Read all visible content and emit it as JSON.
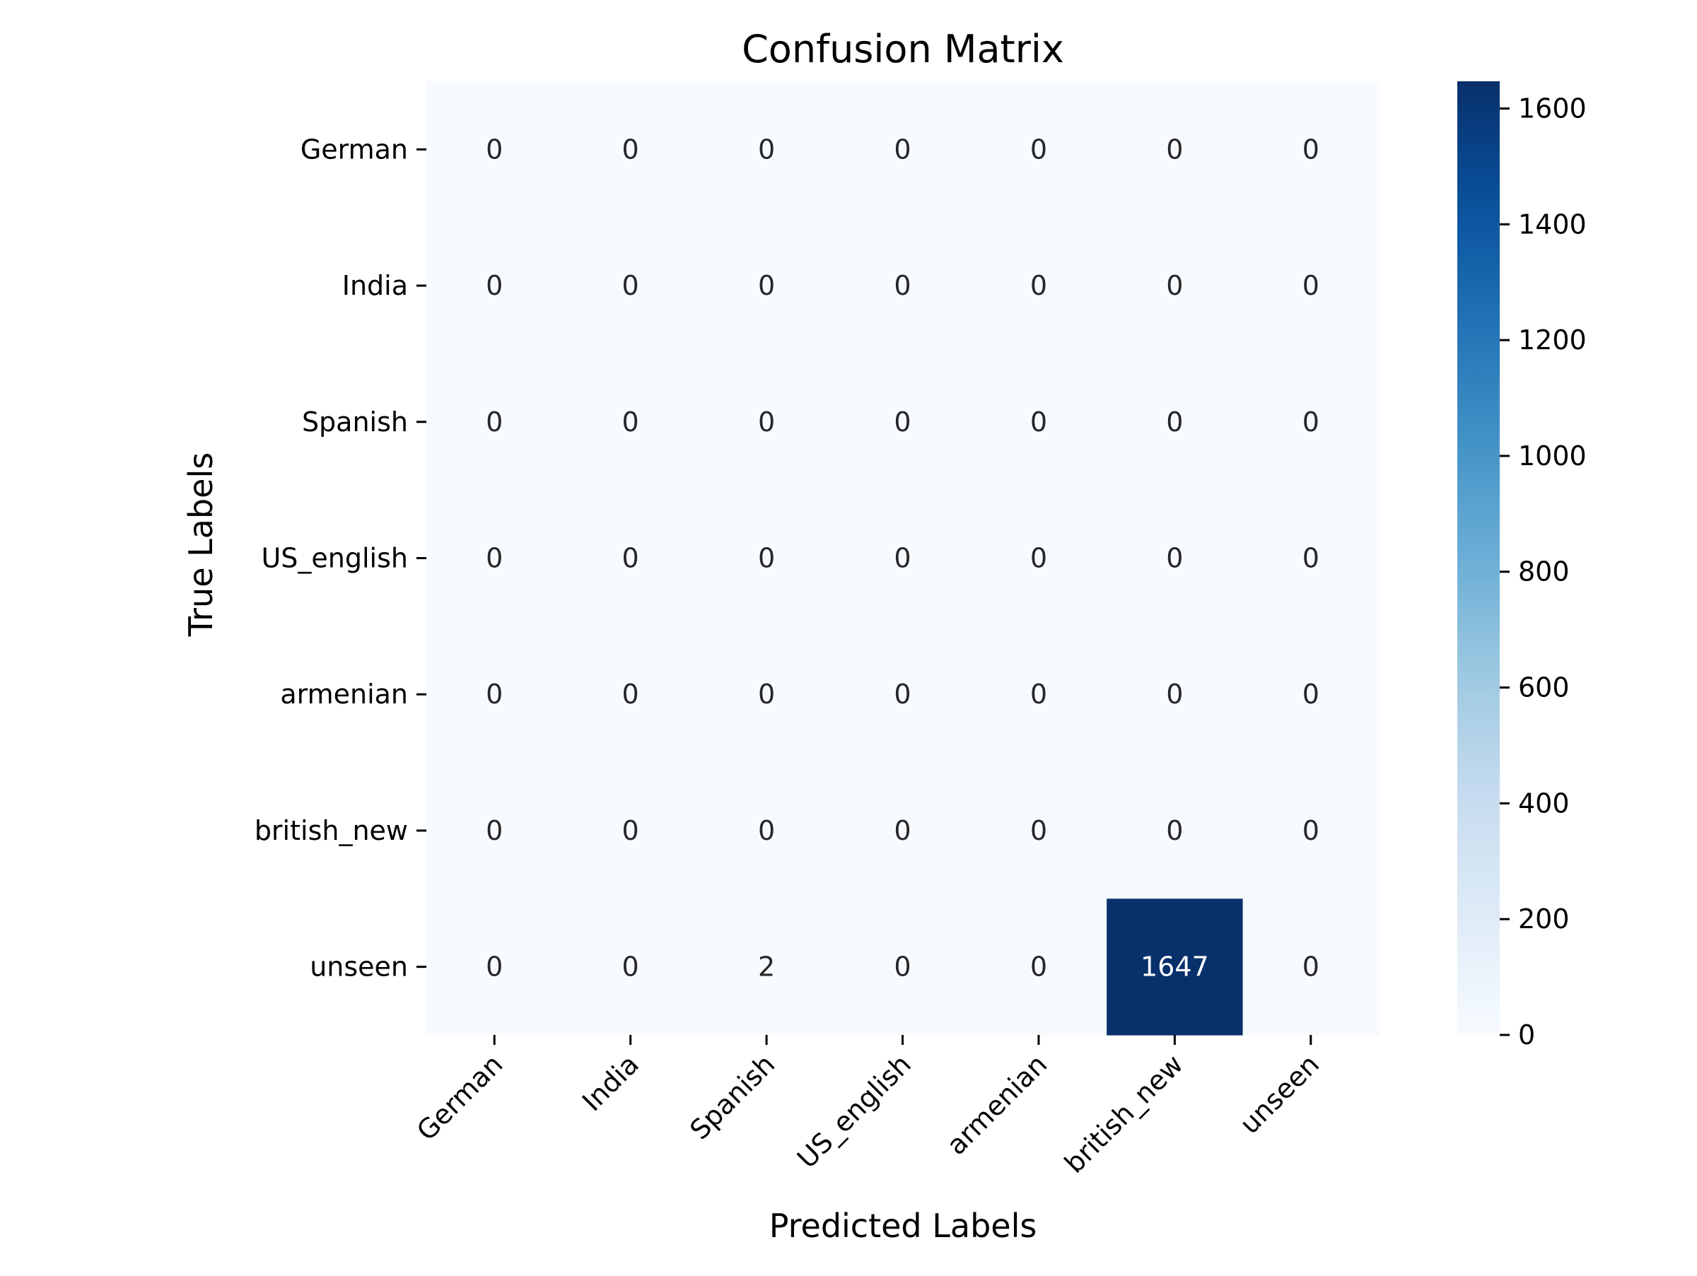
{
  "chart_data": {
    "type": "heatmap",
    "title": "Confusion Matrix",
    "xlabel": "Predicted Labels",
    "ylabel": "True Labels",
    "x_categories": [
      "German",
      "India",
      "Spanish",
      "US_english",
      "armenian",
      "british_new",
      "unseen"
    ],
    "y_categories": [
      "German",
      "India",
      "Spanish",
      "US_english",
      "armenian",
      "british_new",
      "unseen"
    ],
    "values": [
      [
        0,
        0,
        0,
        0,
        0,
        0,
        0
      ],
      [
        0,
        0,
        0,
        0,
        0,
        0,
        0
      ],
      [
        0,
        0,
        0,
        0,
        0,
        0,
        0
      ],
      [
        0,
        0,
        0,
        0,
        0,
        0,
        0
      ],
      [
        0,
        0,
        0,
        0,
        0,
        0,
        0
      ],
      [
        0,
        0,
        0,
        0,
        0,
        0,
        0
      ],
      [
        0,
        0,
        2,
        0,
        0,
        1647,
        0
      ]
    ],
    "colormap": "Blues",
    "colorbar": {
      "range": [
        0,
        1647
      ],
      "ticks": [
        0,
        200,
        400,
        600,
        800,
        1000,
        1200,
        1400,
        1600
      ]
    },
    "colors": {
      "low": "#f7fbff",
      "high": "#08306b",
      "text_dark": "#262626",
      "text_light": "#ffffff"
    }
  }
}
